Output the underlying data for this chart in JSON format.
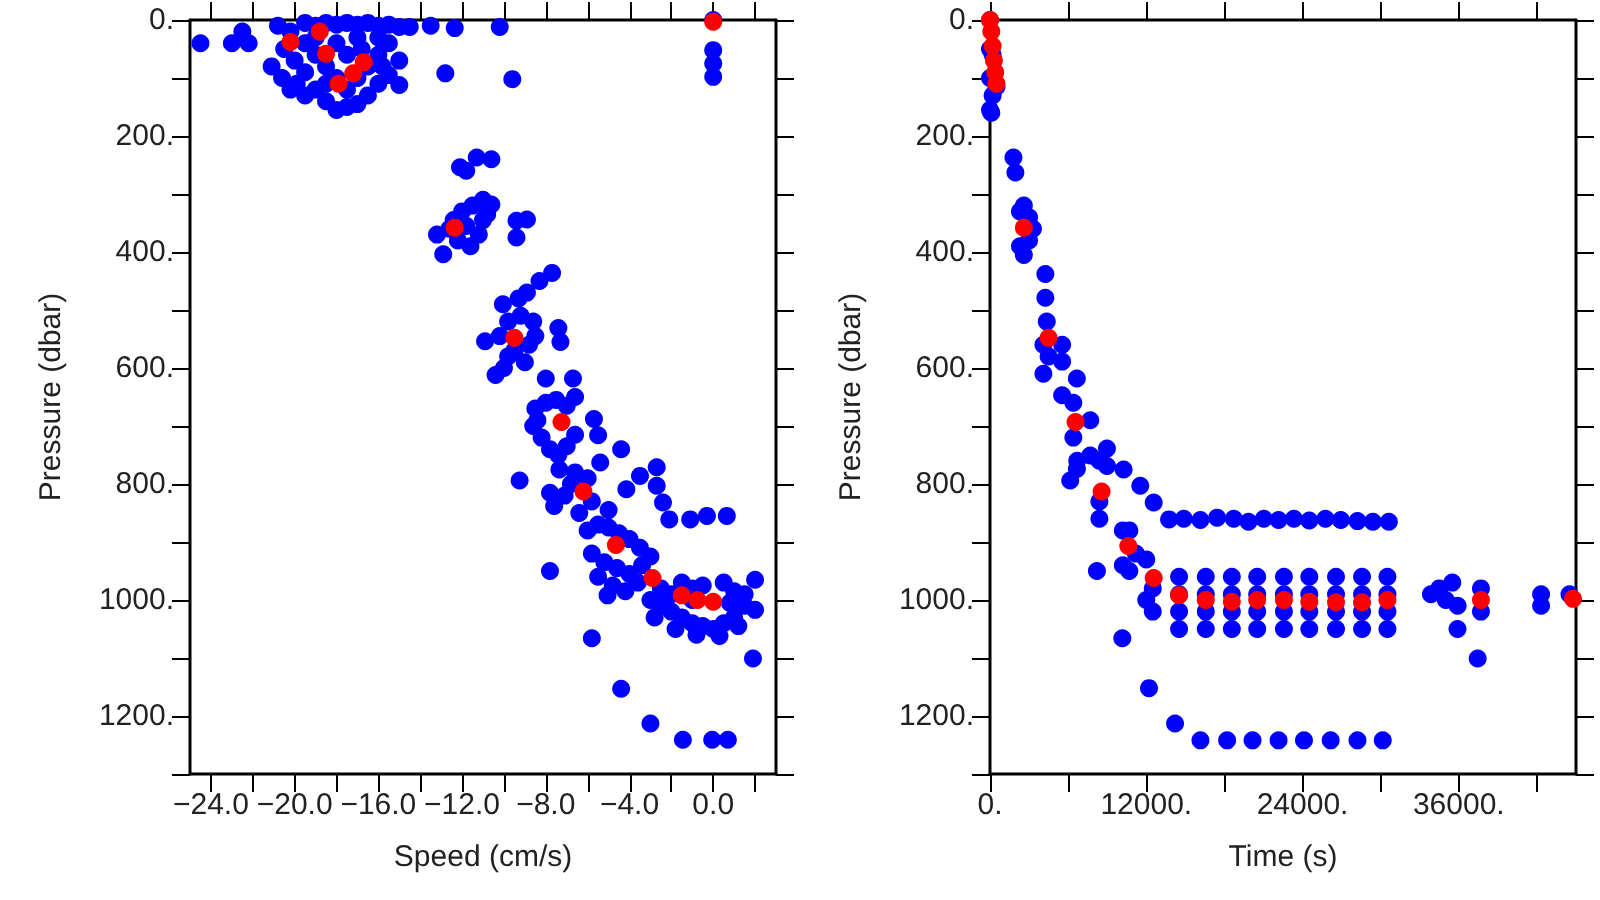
{
  "chart_data": [
    {
      "type": "scatter",
      "xlabel": "Speed (cm/s)",
      "ylabel": "Pressure (dbar)",
      "xlim": [
        -25,
        3
      ],
      "ylim": [
        1300,
        0
      ],
      "xticks": [
        {
          "value": -24,
          "label": "−24.0"
        },
        {
          "value": -22,
          "label": null
        },
        {
          "value": -20,
          "label": "−20.0"
        },
        {
          "value": -18,
          "label": null
        },
        {
          "value": -16,
          "label": "−16.0"
        },
        {
          "value": -14,
          "label": null
        },
        {
          "value": -12,
          "label": "−12.0"
        },
        {
          "value": -10,
          "label": null
        },
        {
          "value": -8,
          "label": "−8.0"
        },
        {
          "value": -6,
          "label": null
        },
        {
          "value": -4,
          "label": "−4.0"
        },
        {
          "value": -2,
          "label": null
        },
        {
          "value": 0,
          "label": "0.0"
        },
        {
          "value": 2,
          "label": null
        }
      ],
      "yticks": [
        {
          "value": 0,
          "label": "0."
        },
        {
          "value": 100,
          "label": null
        },
        {
          "value": 200,
          "label": "200."
        },
        {
          "value": 300,
          "label": null
        },
        {
          "value": 400,
          "label": "400."
        },
        {
          "value": 500,
          "label": null
        },
        {
          "value": 600,
          "label": "600."
        },
        {
          "value": 700,
          "label": null
        },
        {
          "value": 800,
          "label": "800."
        },
        {
          "value": 900,
          "label": null
        },
        {
          "value": 1000,
          "label": "1000."
        },
        {
          "value": 1100,
          "label": null
        },
        {
          "value": 1200,
          "label": "1200."
        },
        {
          "value": 1300,
          "label": null
        }
      ],
      "grid": false,
      "marker": "circle",
      "series": [
        {
          "color": "#0000ff",
          "x": [
            -24.5,
            -23.0,
            -22.5,
            -22.2,
            -21.1,
            -20.6,
            -19.9,
            -20.8,
            -20.2,
            -19.5,
            -19,
            -18.5,
            -18,
            -17.5,
            -17,
            -16.5,
            -16,
            -15.5,
            -15,
            -14.5,
            -13.5,
            -12.35,
            -10.2,
            -20.5,
            -20,
            -19.5,
            -19,
            -18.5,
            -18,
            -17.5,
            -17,
            -16.5,
            -16,
            -15.5,
            -15,
            -19.5,
            -19,
            -18.5,
            -18,
            -17.5,
            -17,
            -16.5,
            -16,
            -15.5,
            -17,
            -18,
            -16,
            -19,
            -18.5,
            -17.5,
            -16.8,
            -15.8,
            -19.5,
            -20.2,
            -15.0,
            -12.8,
            -9.6,
            0,
            0,
            0,
            0,
            -12.1,
            -11.3,
            -10.6,
            -11.8,
            -13.2,
            -12.9,
            -12.4,
            -12,
            -11.5,
            -11,
            -10.6,
            -12.2,
            -11.6,
            -11.2,
            -11.8,
            -11,
            -10.8,
            -12.6,
            -9.4,
            -8.9,
            -9.4,
            -7.7,
            -8.3,
            -10.05,
            -9.3,
            -8.9,
            -10.9,
            -10.4,
            -7.4,
            -8.0,
            -6.7,
            -9.8,
            -9.2,
            -8.6,
            -10.2,
            -9.5,
            -8.8,
            -9,
            -9.8,
            -8.5,
            -7.3,
            -10,
            -8.5,
            -8.0,
            -7.5,
            -7,
            -6.6,
            -8.6,
            -8.2,
            -7.8,
            -7.4,
            -7,
            -6.6,
            -8.4,
            -5.7,
            -5.5,
            -9.25,
            -7.35,
            -7.8,
            -7.6,
            -6.4,
            -5.4,
            -4.4,
            -4.15,
            -3.5,
            -2.7,
            -2.7,
            -2.4,
            -2.1,
            -6.8,
            -6.0,
            -5.8,
            -5,
            -6.6,
            -7.1,
            -6,
            -5.5,
            -5,
            -4.5,
            -4,
            -3.5,
            -5.8,
            -5.2,
            -4.6,
            -4,
            -3.4,
            -3,
            -5.5,
            -4.8,
            -4.2,
            -3.6,
            -7.8,
            -5.05,
            -5.8,
            -4.4,
            -3.0,
            -1.45,
            -0.05,
            0.7,
            1.9,
            2.0,
            2.0,
            -1.1,
            -0.3,
            0.65,
            -3,
            -2.5,
            -2,
            -1.5,
            -1,
            -0.5,
            0,
            0.5,
            1,
            1.5,
            -2.5,
            -2,
            -1.5,
            -1,
            -0.5,
            0.5,
            1,
            1.5,
            -1.8,
            -0.8,
            0.3,
            1.2,
            -1,
            0.8,
            -2.8
          ],
          "values": [
            40,
            40,
            20,
            40,
            80,
            100,
            110,
            10,
            20,
            5,
            10,
            5,
            8,
            5,
            8,
            5,
            10,
            8,
            12,
            12,
            10,
            14,
            12,
            50,
            70,
            90,
            120,
            140,
            155,
            150,
            145,
            130,
            110,
            95,
            70,
            40,
            60,
            80,
            100,
            120,
            100,
            80,
            60,
            40,
            30,
            40,
            30,
            30,
            110,
            60,
            50,
            80,
            130,
            120,
            112,
            92,
            102,
            0,
            52,
            75,
            98,
            254,
            237,
            240,
            260,
            370,
            404,
            345,
            330,
            320,
            310,
            318,
            380,
            390,
            370,
            355,
            345,
            335,
            360,
            346,
            344,
            375,
            436,
            450,
            490,
            480,
            470,
            554,
            612,
            531,
            618,
            618,
            520,
            510,
            520,
            545,
            570,
            560,
            590,
            580,
            545,
            555,
            600,
            670,
            660,
            655,
            665,
            650,
            700,
            720,
            740,
            750,
            735,
            715,
            690,
            688,
            716,
            794,
            775,
            815,
            838,
            850,
            763,
            740,
            809,
            786,
            771,
            803,
            832,
            861,
            800,
            790,
            830,
            845,
            780,
            820,
            880,
            870,
            875,
            885,
            895,
            910,
            920,
            935,
            945,
            955,
            940,
            925,
            960,
            975,
            985,
            970,
            950,
            992,
            1066,
            1153,
            1213,
            1241,
            1241,
            1241,
            1101,
            1017,
            965,
            861,
            855,
            855,
            1000,
            1010,
            1020,
            1030,
            1040,
            1045,
            1050,
            1040,
            1030,
            1010,
            980,
            990,
            970,
            980,
            975,
            970,
            985,
            990,
            1050,
            1060,
            1062,
            1045,
            1000,
            1005,
            1030
          ]
        },
        {
          "color": "#ff0000",
          "x": [
            -20.2,
            -18.8,
            -18.5,
            -16.7,
            -17.2,
            -17.9,
            0,
            -12.35,
            -9.5,
            -7.25,
            -6.2,
            -4.65,
            -2.9,
            -1.5,
            -0.75,
            0
          ],
          "values": [
            38,
            20,
            58,
            73,
            92,
            110,
            3,
            358,
            548,
            693,
            813,
            905,
            962,
            992,
            1000,
            1003
          ]
        }
      ]
    },
    {
      "type": "scatter",
      "xlabel": "Time (s)",
      "ylabel": "Pressure (dbar)",
      "xlim": [
        0,
        45000
      ],
      "ylim": [
        1300,
        0
      ],
      "xticks": [
        {
          "value": 0,
          "label": "0."
        },
        {
          "value": 6000,
          "label": null
        },
        {
          "value": 12000,
          "label": "12000."
        },
        {
          "value": 18000,
          "label": null
        },
        {
          "value": 24000,
          "label": "24000."
        },
        {
          "value": 30000,
          "label": null
        },
        {
          "value": 36000,
          "label": "36000."
        },
        {
          "value": 42000,
          "label": null
        }
      ],
      "yticks": [
        {
          "value": 0,
          "label": "0."
        },
        {
          "value": 100,
          "label": null
        },
        {
          "value": 200,
          "label": "200."
        },
        {
          "value": 300,
          "label": null
        },
        {
          "value": 400,
          "label": "400."
        },
        {
          "value": 500,
          "label": null
        },
        {
          "value": 600,
          "label": "600."
        },
        {
          "value": 700,
          "label": null
        },
        {
          "value": 800,
          "label": "800."
        },
        {
          "value": 900,
          "label": null
        },
        {
          "value": 1000,
          "label": "1000."
        },
        {
          "value": 1100,
          "label": null
        },
        {
          "value": 1200,
          "label": "1200."
        },
        {
          "value": 1300,
          "label": null
        }
      ],
      "grid": false,
      "marker": "circle",
      "series": [
        {
          "color": "#0000ff",
          "x": [
            0,
            0,
            0,
            0,
            100,
            200,
            500,
            200,
            1800,
            1950,
            2300,
            2600,
            3000,
            3300,
            2300,
            2600,
            3000,
            4250,
            4250,
            4360,
            4100,
            4500,
            4100,
            5540,
            5540,
            5540,
            6670,
            6400,
            6400,
            6700,
            6670,
            7700,
            7700,
            8980,
            6160,
            8400,
            8400,
            8400,
            8980,
            10260,
            11540,
            12570,
            13750,
            14880,
            16160,
            17440,
            18720,
            19850,
            21030,
            22160,
            23340,
            24520,
            25760,
            26940,
            28220,
            29400,
            30630,
            10200,
            10200,
            10700,
            10700,
            11200,
            12000,
            12000,
            12500,
            12500,
            8210,
            10160,
            14520,
            14520,
            14520,
            14520,
            16570,
            16570,
            16570,
            16570,
            18570,
            18570,
            18570,
            18570,
            20520,
            20520,
            20520,
            20520,
            22570,
            22570,
            22570,
            22570,
            24520,
            24520,
            24520,
            24520,
            26570,
            26570,
            26570,
            26570,
            28570,
            28570,
            28570,
            28570,
            30520,
            30520,
            30520,
            30520,
            12210,
            14210,
            16160,
            18210,
            20160,
            22160,
            24110,
            26160,
            28220,
            30160,
            33860,
            34500,
            35000,
            35500,
            35910,
            35900,
            37450,
            37700,
            37700,
            42320,
            42320,
            44500
          ],
          "values": [
            0,
            50,
            100,
            155,
            160,
            130,
            115,
            60,
            237,
            263,
            330,
            320,
            340,
            360,
            390,
            405,
            380,
            438,
            479,
            520,
            560,
            580,
            610,
            589,
            647,
            560,
            618,
            660,
            720,
            760,
            774,
            751,
            690,
            739,
            794,
            760,
            830,
            860,
            769,
            775,
            803,
            832,
            861,
            860,
            862,
            858,
            860,
            865,
            860,
            862,
            860,
            863,
            860,
            862,
            864,
            865,
            865,
            880,
            940,
            880,
            950,
            920,
            930,
            1000,
            1020,
            980,
            950,
            1066,
            960,
            990,
            1020,
            1050,
            960,
            990,
            1020,
            1050,
            960,
            990,
            1020,
            1050,
            960,
            990,
            1020,
            1050,
            960,
            990,
            1020,
            1050,
            960,
            990,
            1020,
            1050,
            960,
            990,
            1020,
            1050,
            960,
            990,
            1020,
            1050,
            960,
            990,
            1020,
            1050,
            1152,
            1213,
            1242,
            1242,
            1242,
            1242,
            1242,
            1242,
            1242,
            1242,
            990,
            980,
            1000,
            970,
            1010,
            1050,
            1101,
            980,
            1020,
            990,
            1010,
            990
          ]
        },
        {
          "color": "#ff0000",
          "x": [
            0,
            100,
            200,
            300,
            400,
            500,
            2600,
            4500,
            6570,
            8570,
            10620,
            12570,
            14520,
            16570,
            18570,
            20520,
            22570,
            24520,
            26570,
            28570,
            30520,
            37700,
            44770
          ],
          "values": [
            0,
            20,
            45,
            70,
            90,
            110,
            358,
            548,
            693,
            813,
            907,
            962,
            992,
            1000,
            1003,
            1000,
            1000,
            1003,
            1004,
            1004,
            1000,
            1000,
            998
          ]
        }
      ]
    }
  ]
}
